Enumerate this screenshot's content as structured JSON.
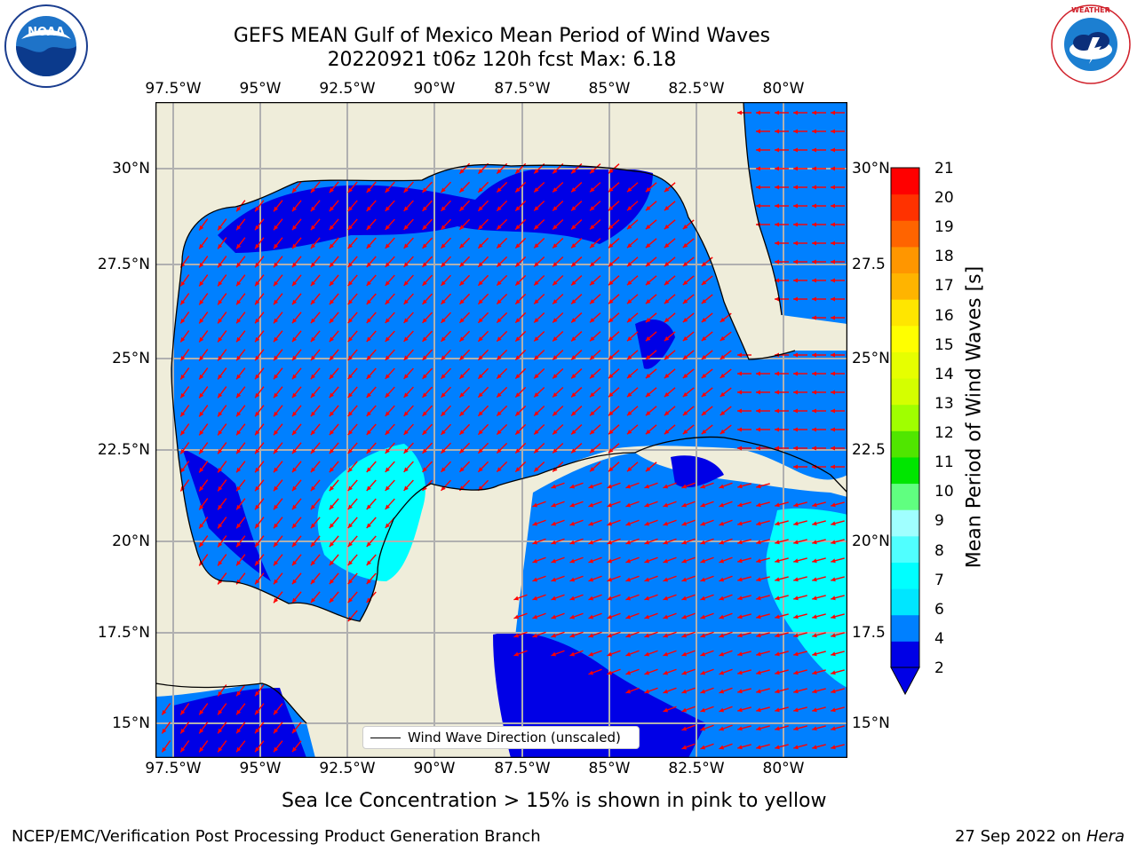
{
  "title": {
    "line1": "GEFS MEAN Gulf of Mexico Mean Period of Wind Waves",
    "line2": "20220921 t06z 120h fcst   Max: 6.18"
  },
  "map": {
    "top_lon_ticks": [
      "97.5°W",
      "95°W",
      "92.5°W",
      "90°W",
      "87.5°W",
      "85°W",
      "82.5°W",
      "80°W"
    ],
    "bottom_lon_ticks": [
      "97.5°W",
      "95°W",
      "92.5°W",
      "90°W",
      "87.5°W",
      "85°W",
      "82.5°W",
      "80°W"
    ],
    "left_lat_ticks": [
      "30°N",
      "27.5°N",
      "25°N",
      "22.5°N",
      "20°N",
      "17.5°N",
      "15°N"
    ],
    "right_lat_ticks": [
      "30°N",
      "27.5",
      "25°N",
      "22.5",
      "20°N",
      "17.5",
      "15°N"
    ],
    "land_color": "#efedda",
    "arrow_color": "#ff0000",
    "grid_color": "#b0b0b0"
  },
  "legend": {
    "label": "Wind Wave Direction (unscaled)"
  },
  "colorbar": {
    "label": "Mean Period of Wind Waves [s]",
    "ticks": [
      "21",
      "20",
      "19",
      "18",
      "17",
      "16",
      "15",
      "14",
      "13",
      "12",
      "11",
      "10",
      "9",
      "8",
      "7",
      "6",
      "4",
      "2"
    ],
    "colors": [
      "#0000e6",
      "#0080ff",
      "#00e6ff",
      "#00ffff",
      "#50ffff",
      "#a0ffff",
      "#60ff80",
      "#00e600",
      "#50e600",
      "#a0ff00",
      "#d4ff00",
      "#e6ff00",
      "#ffff00",
      "#ffe600",
      "#ffb400",
      "#ff9600",
      "#ff6400",
      "#ff3200",
      "#ff0000"
    ]
  },
  "note": "Sea Ice Concentration > 15% is shown in pink to yellow",
  "footer": {
    "left": "NCEP/EMC/Verification Post Processing Product Generation Branch",
    "right_date": "27 Sep 2022 on",
    "right_machine": "Hera"
  },
  "logos": {
    "noaa": "NOAA",
    "nws": "NATIONAL WEATHER SERVICE"
  }
}
